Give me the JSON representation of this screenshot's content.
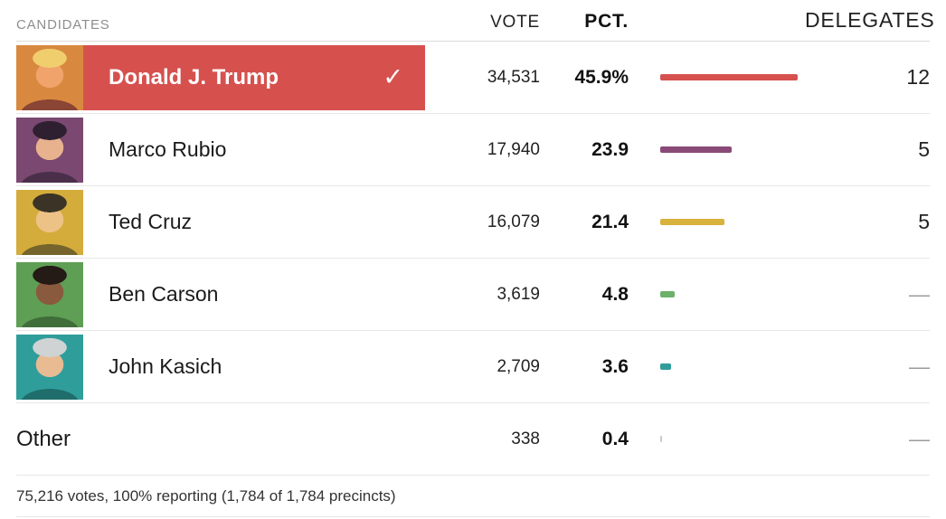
{
  "header": {
    "candidates": "CANDIDATES",
    "vote": "VOTE",
    "pct": "PCT.",
    "delegates": "DELEGATES"
  },
  "rows": [
    {
      "name": "Donald J. Trump",
      "vote": "34,531",
      "pct": "45.9%",
      "pct_value": 45.9,
      "delegates": "12",
      "winner": true,
      "checkmark": "✓",
      "bar_color": "#d6514e",
      "avatar": {
        "bg": "#d8893f",
        "face": "#f0a36a",
        "hair": "#f0ce6d",
        "suit": "#8a4534"
      }
    },
    {
      "name": "Marco Rubio",
      "vote": "17,940",
      "pct": "23.9",
      "pct_value": 23.9,
      "delegates": "5",
      "winner": false,
      "bar_color": "#8a4a77",
      "avatar": {
        "bg": "#7a4870",
        "face": "#e8b28e",
        "hair": "#2e2030",
        "suit": "#4a2f4a"
      }
    },
    {
      "name": "Ted Cruz",
      "vote": "16,079",
      "pct": "21.4",
      "pct_value": 21.4,
      "delegates": "5",
      "winner": false,
      "bar_color": "#d9b23d",
      "avatar": {
        "bg": "#d4ac3c",
        "face": "#ecc287",
        "hair": "#3a3326",
        "suit": "#75652c"
      }
    },
    {
      "name": "Ben Carson",
      "vote": "3,619",
      "pct": "4.8",
      "pct_value": 4.8,
      "delegates": "—",
      "winner": false,
      "bar_color": "#6cb16a",
      "avatar": {
        "bg": "#5f9e55",
        "face": "#8a5a3e",
        "hair": "#241a16",
        "suit": "#3f6e3a"
      }
    },
    {
      "name": "John Kasich",
      "vote": "2,709",
      "pct": "3.6",
      "pct_value": 3.6,
      "delegates": "—",
      "winner": false,
      "bar_color": "#2f9e9b",
      "avatar": {
        "bg": "#2f9e9b",
        "face": "#e8bb93",
        "hair": "#cfd3d4",
        "suit": "#1f6e6c"
      }
    },
    {
      "name": "Other",
      "vote": "338",
      "pct": "0.4",
      "pct_value": 0.4,
      "delegates": "—",
      "winner": false,
      "no_avatar": true,
      "bar_color": "#c9c9c9"
    }
  ],
  "footer": "75,216 votes, 100% reporting (1,784 of 1,784 precincts)",
  "chart_data": {
    "type": "table",
    "columns": [
      "CANDIDATES",
      "VOTE",
      "PCT.",
      "DELEGATES"
    ],
    "rows": [
      {
        "candidate": "Donald J. Trump",
        "vote": 34531,
        "pct": 45.9,
        "delegates": 12,
        "winner": true
      },
      {
        "candidate": "Marco Rubio",
        "vote": 17940,
        "pct": 23.9,
        "delegates": 5,
        "winner": false
      },
      {
        "candidate": "Ted Cruz",
        "vote": 16079,
        "pct": 21.4,
        "delegates": 5,
        "winner": false
      },
      {
        "candidate": "Ben Carson",
        "vote": 3619,
        "pct": 4.8,
        "delegates": null,
        "winner": false
      },
      {
        "candidate": "John Kasich",
        "vote": 2709,
        "pct": 3.6,
        "delegates": null,
        "winner": false
      },
      {
        "candidate": "Other",
        "vote": 338,
        "pct": 0.4,
        "delegates": null,
        "winner": false
      }
    ],
    "bar_colors": [
      "#d6514e",
      "#8a4a77",
      "#d9b23d",
      "#6cb16a",
      "#2f9e9b",
      "#c9c9c9"
    ],
    "total_votes": 75216,
    "reporting": "100% reporting (1,784 of 1,784 precincts)"
  }
}
